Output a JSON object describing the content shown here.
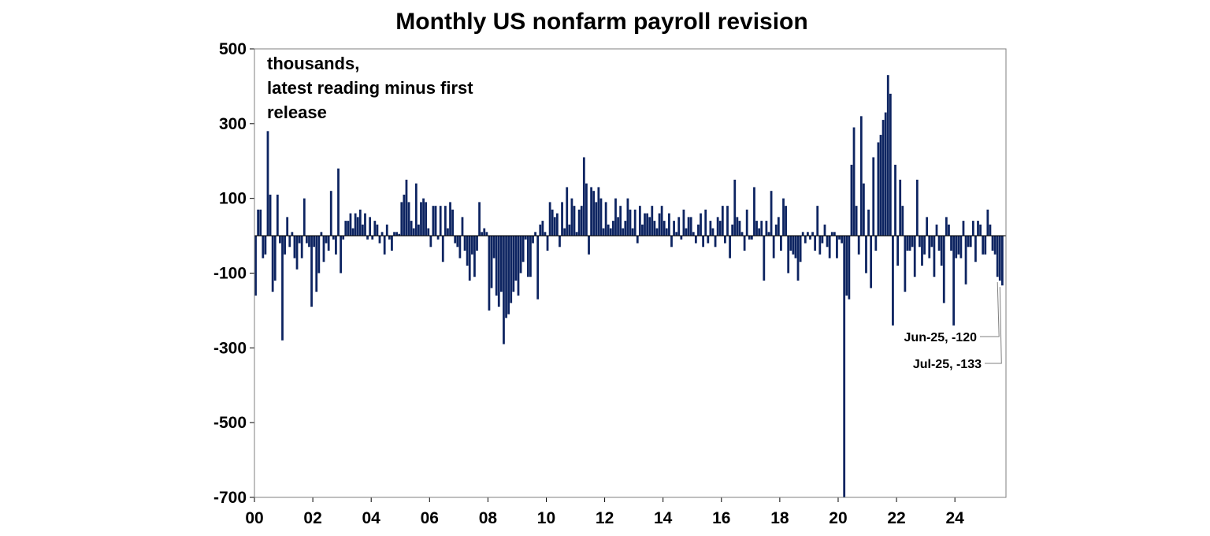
{
  "chart_data": {
    "type": "bar",
    "title": "Monthly US nonfarm payroll revision",
    "note_lines": [
      "thousands,",
      "latest reading minus first",
      "release"
    ],
    "ylim": [
      -700,
      500
    ],
    "yticks": [
      500,
      300,
      100,
      -100,
      -300,
      -500,
      -700
    ],
    "xlim": [
      2000.0,
      2025.75
    ],
    "xticks": [
      {
        "year": 2000,
        "label": "00"
      },
      {
        "year": 2002,
        "label": "02"
      },
      {
        "year": 2004,
        "label": "04"
      },
      {
        "year": 2006,
        "label": "06"
      },
      {
        "year": 2008,
        "label": "08"
      },
      {
        "year": 2010,
        "label": "10"
      },
      {
        "year": 2012,
        "label": "12"
      },
      {
        "year": 2014,
        "label": "14"
      },
      {
        "year": 2016,
        "label": "16"
      },
      {
        "year": 2018,
        "label": "18"
      },
      {
        "year": 2020,
        "label": "20"
      },
      {
        "year": 2022,
        "label": "22"
      },
      {
        "year": 2024,
        "label": "24"
      }
    ],
    "grid": false,
    "bar_color": "#0d2461",
    "start": "2000-01",
    "values": [
      -160,
      70,
      70,
      -60,
      -50,
      280,
      110,
      -150,
      -120,
      110,
      -20,
      -280,
      -50,
      50,
      -30,
      10,
      -60,
      -90,
      -20,
      -60,
      100,
      -20,
      -30,
      -190,
      -30,
      -150,
      -100,
      10,
      -70,
      -20,
      -40,
      120,
      -10,
      -50,
      180,
      -100,
      -10,
      40,
      40,
      60,
      20,
      60,
      50,
      70,
      30,
      60,
      -10,
      50,
      -10,
      40,
      30,
      -20,
      10,
      -50,
      30,
      -10,
      -40,
      10,
      10,
      5,
      90,
      110,
      150,
      90,
      40,
      20,
      140,
      30,
      90,
      100,
      90,
      20,
      -30,
      80,
      80,
      -10,
      80,
      -70,
      80,
      20,
      90,
      70,
      -20,
      -30,
      -60,
      50,
      -40,
      -80,
      -120,
      -50,
      -110,
      -40,
      90,
      10,
      20,
      10,
      -200,
      -140,
      -60,
      -160,
      -190,
      -150,
      -290,
      -220,
      -210,
      -180,
      -150,
      -120,
      -160,
      -100,
      -70,
      -10,
      -110,
      -110,
      -20,
      10,
      -170,
      30,
      40,
      10,
      -40,
      90,
      70,
      50,
      60,
      -30,
      90,
      20,
      130,
      30,
      100,
      80,
      10,
      70,
      80,
      210,
      140,
      -50,
      130,
      120,
      90,
      130,
      100,
      20,
      90,
      30,
      20,
      40,
      100,
      50,
      80,
      20,
      40,
      100,
      70,
      20,
      70,
      -20,
      80,
      30,
      60,
      60,
      50,
      80,
      40,
      20,
      60,
      80,
      40,
      20,
      60,
      -30,
      40,
      10,
      50,
      -10,
      70,
      20,
      50,
      50,
      10,
      -20,
      30,
      60,
      -30,
      70,
      -20,
      40,
      20,
      -30,
      50,
      40,
      80,
      -20,
      80,
      -60,
      30,
      150,
      50,
      40,
      10,
      -40,
      70,
      -10,
      -10,
      130,
      40,
      20,
      40,
      -120,
      40,
      10,
      120,
      -60,
      30,
      50,
      -40,
      100,
      80,
      -100,
      -40,
      -50,
      -60,
      -120,
      -70,
      10,
      -20,
      10,
      -10,
      10,
      -40,
      80,
      -50,
      -20,
      30,
      -30,
      -60,
      10,
      10,
      -60,
      -10,
      -20,
      -700,
      -160,
      -170,
      190,
      290,
      80,
      -50,
      320,
      140,
      -100,
      70,
      -140,
      210,
      -40,
      250,
      270,
      310,
      330,
      430,
      380,
      -240,
      190,
      -80,
      150,
      80,
      -150,
      -40,
      -40,
      -30,
      -110,
      150,
      -30,
      -80,
      -50,
      50,
      -60,
      -30,
      -110,
      30,
      -40,
      -80,
      -180,
      50,
      30,
      -40,
      -240,
      -60,
      -50,
      -60,
      40,
      -130,
      -30,
      -30,
      40,
      -70,
      40,
      30,
      -50,
      -50,
      70,
      30,
      -40,
      -50,
      -110,
      -120,
      -133
    ],
    "annotations": [
      {
        "label": "Jun-25, -120",
        "x": "2025-06",
        "value": -120
      },
      {
        "label": "Jul-25, -133",
        "x": "2025-07",
        "value": -133
      }
    ]
  }
}
